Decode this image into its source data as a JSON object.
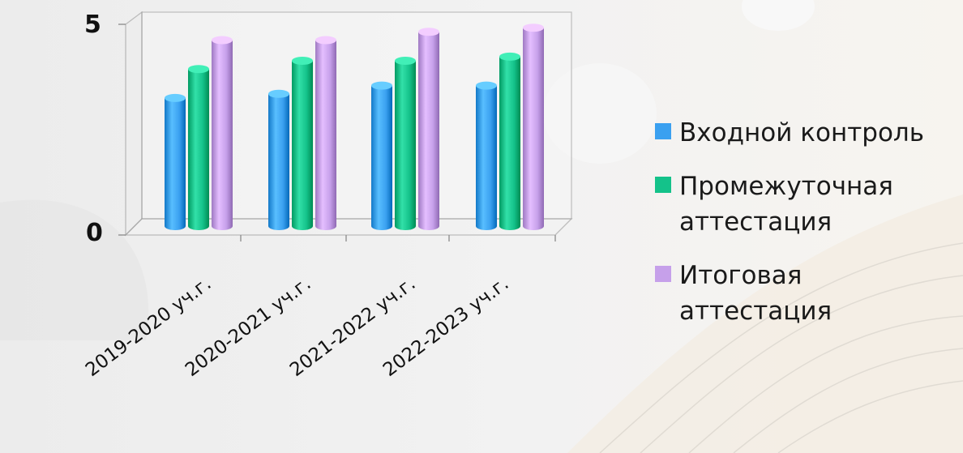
{
  "chart_data": {
    "type": "bar",
    "title": "",
    "xlabel": "",
    "ylabel": "",
    "ylim": [
      0,
      5
    ],
    "yticks": [
      "0",
      "5"
    ],
    "categories": [
      "2019-2020 уч.г.",
      "2020-2021 уч.г.",
      "2021-2022 уч.г.",
      "2022-2023 уч.г."
    ],
    "series": [
      {
        "name": "Входной контроль",
        "values": [
          3.1,
          3.2,
          3.4,
          3.4
        ],
        "color": "#3aa0f0"
      },
      {
        "name": "Промежуточная аттестация",
        "values": [
          3.8,
          4.0,
          4.0,
          4.1
        ],
        "color": "#14c28a"
      },
      {
        "name": "Итоговая аттестация",
        "values": [
          4.5,
          4.5,
          4.7,
          4.8
        ],
        "color": "#c6a0ea"
      }
    ],
    "legend_position": "right",
    "grid": false,
    "style": "3d-cylinder"
  }
}
